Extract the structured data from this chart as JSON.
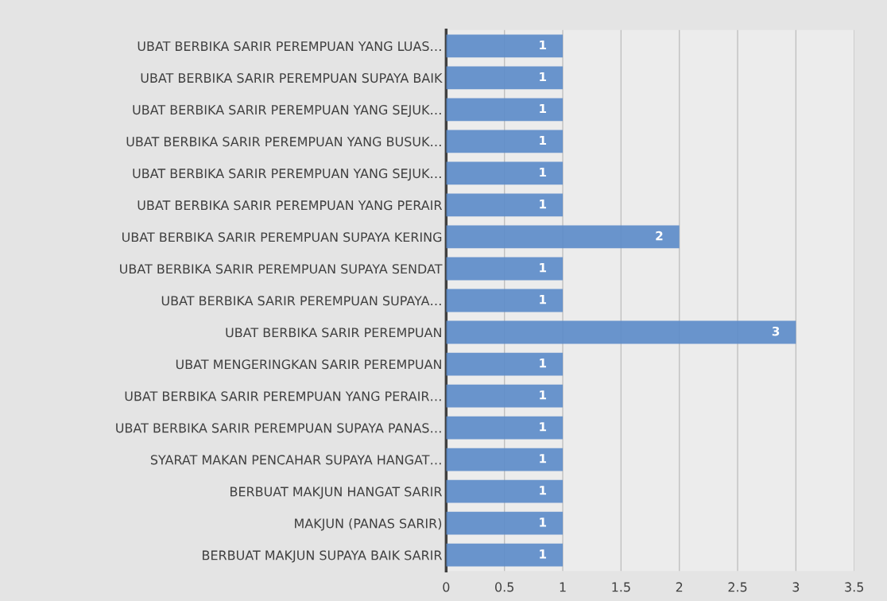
{
  "chart_data": {
    "type": "bar",
    "orientation": "horizontal",
    "categories": [
      "UBAT BERBIKA SARIR PEREMPUAN YANG LUAS…",
      "UBAT BERBIKA SARIR PEREMPUAN SUPAYA BAIK",
      "UBAT BERBIKA SARIR PEREMPUAN YANG SEJUK…",
      "UBAT BERBIKA SARIR PEREMPUAN YANG BUSUK…",
      "UBAT BERBIKA SARIR PEREMPUAN YANG SEJUK…",
      "UBAT BERBIKA SARIR PEREMPUAN YANG PERAIR",
      "UBAT BERBIKA SARIR PEREMPUAN SUPAYA KERING",
      "UBAT BERBIKA SARIR PEREMPUAN SUPAYA SENDAT",
      "UBAT BERBIKA SARIR PEREMPUAN SUPAYA…",
      "UBAT BERBIKA SARIR PEREMPUAN",
      "UBAT MENGERINGKAN SARIR PEREMPUAN",
      "UBAT BERBIKA SARIR PEREMPUAN YANG PERAIR…",
      "UBAT BERBIKA SARIR PEREMPUAN SUPAYA PANAS…",
      "SYARAT MAKAN PENCAHAR SUPAYA HANGAT…",
      "BERBUAT MAKJUN HANGAT SARIR",
      "MAKJUN (PANAS SARIR)",
      "BERBUAT MAKJUN SUPAYA BAIK SARIR"
    ],
    "values": [
      1,
      1,
      1,
      1,
      1,
      1,
      2,
      1,
      1,
      3,
      1,
      1,
      1,
      1,
      1,
      1,
      1
    ],
    "color": "#5b8bc9",
    "xlim": [
      0,
      3.5
    ],
    "xticks": [
      0,
      0.5,
      1,
      1.5,
      2,
      2.5,
      3,
      3.5
    ],
    "grid": "x",
    "data_labels": true
  }
}
